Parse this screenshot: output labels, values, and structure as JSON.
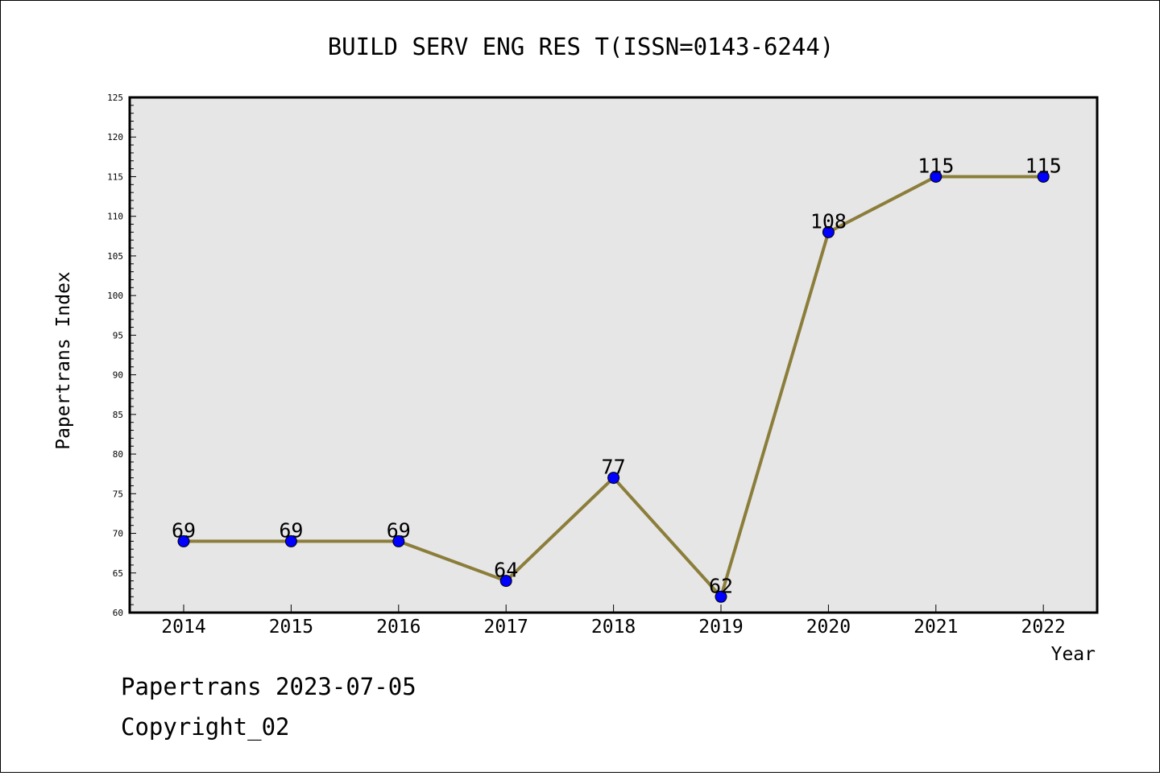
{
  "chart_data": {
    "type": "line",
    "title": "BUILD SERV ENG RES T(ISSN=0143-6244)",
    "xlabel": "Year",
    "ylabel": "Papertrans Index",
    "categories": [
      "2014",
      "2015",
      "2016",
      "2017",
      "2018",
      "2019",
      "2020",
      "2021",
      "2022"
    ],
    "series": [
      {
        "values": [
          69,
          69,
          69,
          64,
          77,
          62,
          108,
          115,
          115
        ]
      }
    ],
    "ylim": [
      60,
      125
    ],
    "yticks": [
      60,
      65,
      70,
      75,
      80,
      85,
      90,
      95,
      100,
      105,
      110,
      115,
      120,
      125
    ],
    "grid": false,
    "colors": {
      "line": "#8b7d3a",
      "marker": "#0000ff",
      "plot_bg": "#e6e6e6"
    }
  },
  "footer": {
    "line1": "Papertrans 2023-07-05",
    "line2": "Copyright_02"
  }
}
